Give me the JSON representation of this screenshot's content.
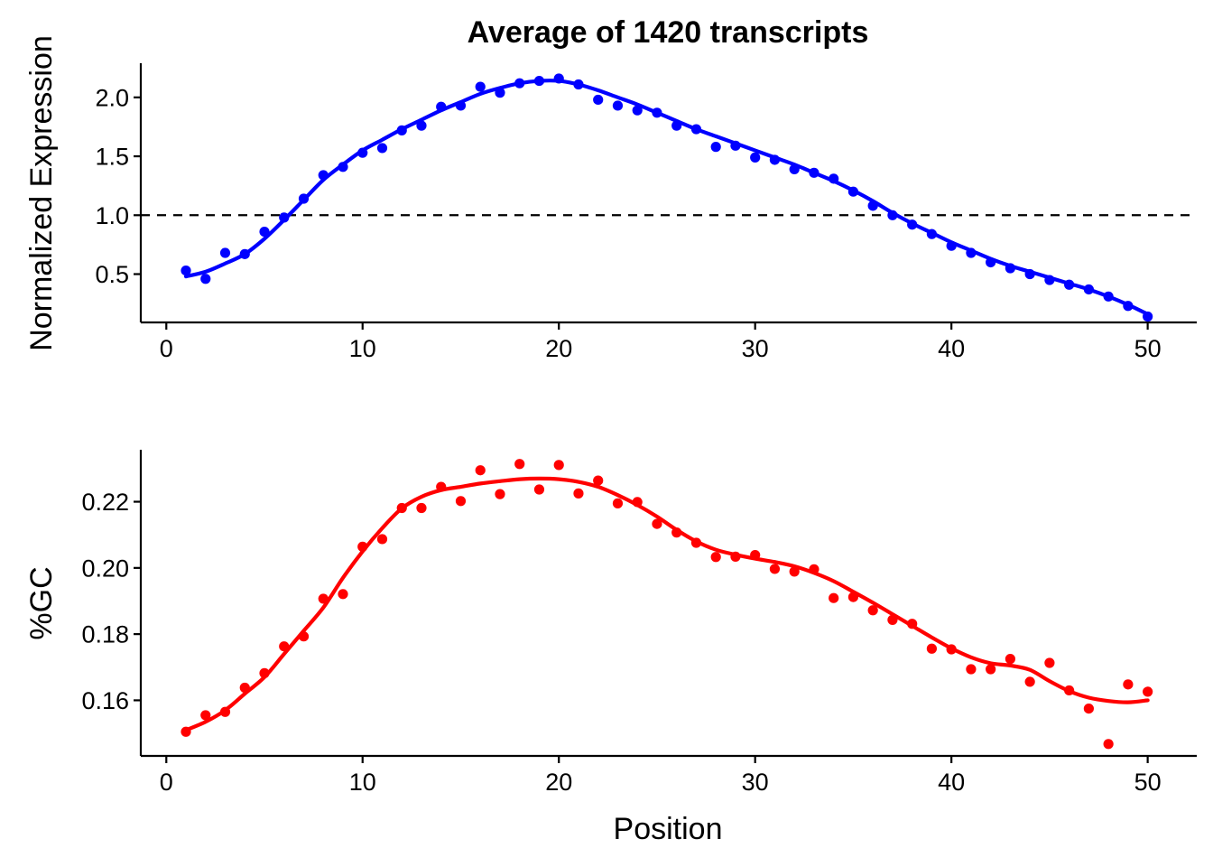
{
  "chart_data": [
    {
      "type": "scatter",
      "title": "Average of 1420 transcripts",
      "xlabel": "",
      "ylabel": "Normalized Expression",
      "xlim": [
        -1.3,
        52.5
      ],
      "ylim": [
        0.09,
        2.29
      ],
      "xticks": [
        0,
        10,
        20,
        30,
        40,
        50
      ],
      "xtick_labels": [
        "0",
        "10",
        "20",
        "30",
        "40",
        "50"
      ],
      "yticks": [
        0.5,
        1.0,
        1.5,
        2.0
      ],
      "ytick_labels": [
        "0.5",
        "1.0",
        "1.5",
        "2.0"
      ],
      "reference_line": 1.0,
      "grid": false,
      "color": "#0000ff",
      "series": [
        {
          "x": [
            1,
            2,
            3,
            4,
            5,
            6,
            7,
            8,
            9,
            10,
            11,
            12,
            13,
            14,
            15,
            16,
            17,
            18,
            19,
            20,
            21,
            22,
            23,
            24,
            25,
            26,
            27,
            28,
            29,
            30,
            31,
            32,
            33,
            34,
            35,
            36,
            37,
            38,
            39,
            40,
            41,
            42,
            43,
            44,
            45,
            46,
            47,
            48,
            49,
            50
          ],
          "y": [
            0.53,
            0.46,
            0.68,
            0.67,
            0.86,
            0.98,
            1.14,
            1.34,
            1.41,
            1.53,
            1.57,
            1.72,
            1.76,
            1.92,
            1.93,
            2.09,
            2.04,
            2.12,
            2.14,
            2.16,
            2.11,
            1.98,
            1.93,
            1.89,
            1.87,
            1.76,
            1.73,
            1.58,
            1.59,
            1.49,
            1.47,
            1.39,
            1.36,
            1.31,
            1.2,
            1.08,
            1.0,
            0.92,
            0.84,
            0.74,
            0.68,
            0.6,
            0.55,
            0.5,
            0.45,
            0.41,
            0.37,
            0.31,
            0.23,
            0.14
          ],
          "fit": [
            0.48,
            0.52,
            0.59,
            0.67,
            0.8,
            0.96,
            1.13,
            1.3,
            1.43,
            1.55,
            1.64,
            1.73,
            1.81,
            1.89,
            1.96,
            2.03,
            2.08,
            2.12,
            2.14,
            2.14,
            2.11,
            2.06,
            2.0,
            1.94,
            1.87,
            1.8,
            1.73,
            1.67,
            1.61,
            1.55,
            1.49,
            1.43,
            1.36,
            1.29,
            1.21,
            1.12,
            1.02,
            0.93,
            0.85,
            0.77,
            0.7,
            0.63,
            0.57,
            0.52,
            0.47,
            0.42,
            0.37,
            0.31,
            0.24,
            0.16
          ]
        }
      ]
    },
    {
      "type": "scatter",
      "title": "",
      "xlabel": "Position",
      "ylabel": "%GC",
      "xlim": [
        -1.3,
        52.5
      ],
      "ylim": [
        0.1432,
        0.2357
      ],
      "xticks": [
        0,
        10,
        20,
        30,
        40,
        50
      ],
      "xtick_labels": [
        "0",
        "10",
        "20",
        "30",
        "40",
        "50"
      ],
      "yticks": [
        0.16,
        0.18,
        0.2,
        0.22
      ],
      "ytick_labels": [
        "0.16",
        "0.18",
        "0.20",
        "0.22"
      ],
      "grid": false,
      "color": "#ff0000",
      "series": [
        {
          "x": [
            1,
            2,
            3,
            4,
            5,
            6,
            7,
            8,
            9,
            10,
            11,
            12,
            13,
            14,
            15,
            16,
            17,
            18,
            19,
            20,
            21,
            22,
            23,
            24,
            25,
            26,
            27,
            28,
            29,
            30,
            31,
            32,
            33,
            34,
            35,
            36,
            37,
            38,
            39,
            40,
            41,
            42,
            43,
            44,
            45,
            46,
            47,
            48,
            49,
            50
          ],
          "y": [
            0.1505,
            0.1555,
            0.1565,
            0.1638,
            0.1682,
            0.1763,
            0.1793,
            0.1907,
            0.1921,
            0.2064,
            0.2087,
            0.2181,
            0.2181,
            0.2245,
            0.2202,
            0.2295,
            0.2223,
            0.2314,
            0.2237,
            0.2311,
            0.2225,
            0.2264,
            0.2195,
            0.2199,
            0.2133,
            0.2107,
            0.2076,
            0.2033,
            0.2034,
            0.2039,
            0.1997,
            0.1989,
            0.1996,
            0.1909,
            0.1912,
            0.1872,
            0.1843,
            0.1831,
            0.1756,
            0.1754,
            0.1694,
            0.1694,
            0.1725,
            0.1656,
            0.1713,
            0.163,
            0.1575,
            0.1468,
            0.1648,
            0.1626
          ],
          "fit": [
            0.151,
            0.1535,
            0.157,
            0.162,
            0.167,
            0.174,
            0.181,
            0.188,
            0.197,
            0.205,
            0.212,
            0.218,
            0.2215,
            0.2235,
            0.2245,
            0.2255,
            0.2262,
            0.2268,
            0.227,
            0.2268,
            0.226,
            0.2245,
            0.222,
            0.219,
            0.2155,
            0.2115,
            0.208,
            0.2055,
            0.204,
            0.2028,
            0.2018,
            0.2005,
            0.1985,
            0.196,
            0.1928,
            0.1895,
            0.186,
            0.1825,
            0.179,
            0.1757,
            0.173,
            0.1712,
            0.1705,
            0.1692,
            0.1658,
            0.1628,
            0.1608,
            0.1598,
            0.1594,
            0.16
          ]
        }
      ]
    }
  ]
}
